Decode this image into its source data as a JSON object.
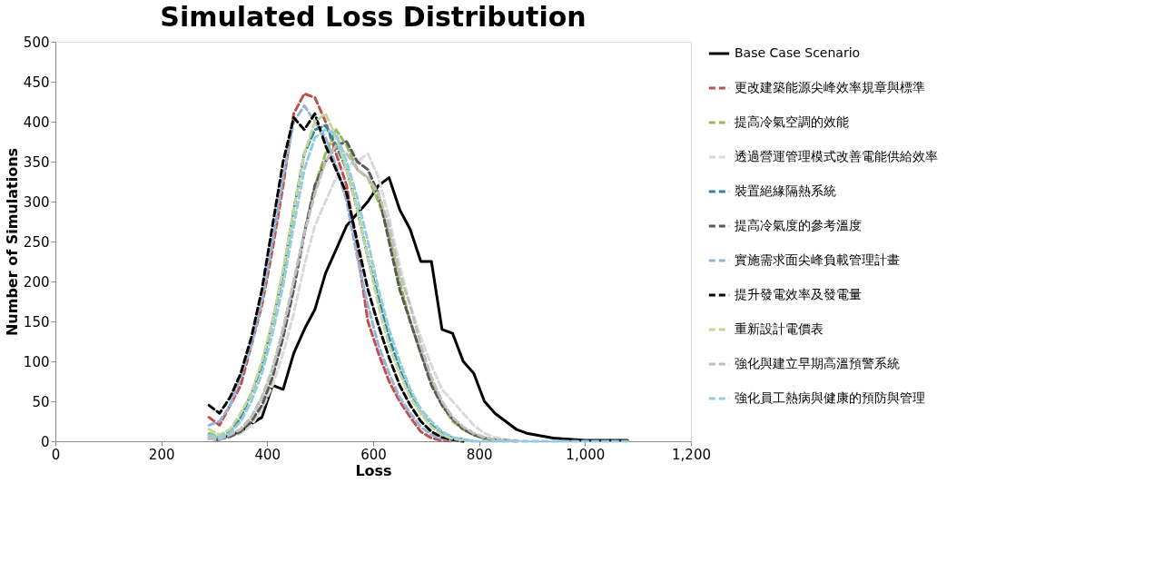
{
  "chart_data": {
    "type": "line",
    "title": "Simulated Loss Distribution",
    "xlabel": "Loss",
    "ylabel": "Number of Simulations",
    "xlim": [
      0,
      1200
    ],
    "xticks": [
      0,
      200,
      400,
      600,
      800,
      {
        "value": 1000,
        "label": "1,000"
      },
      {
        "value": 1200,
        "label": "1,200"
      }
    ],
    "ylim": [
      0,
      500
    ],
    "yticks": [
      0,
      50,
      100,
      150,
      200,
      250,
      300,
      350,
      400,
      450,
      500
    ],
    "grid": false,
    "legend": "right",
    "marker": "none",
    "x": [
      290,
      310,
      330,
      350,
      370,
      390,
      410,
      430,
      450,
      470,
      490,
      510,
      530,
      550,
      570,
      590,
      610,
      630,
      650,
      670,
      690,
      710,
      730,
      750,
      770,
      790,
      810,
      830,
      850,
      870,
      890,
      940,
      1000,
      1080
    ],
    "series": [
      {
        "name": "Base Case Scenario",
        "color": "#000000",
        "line_style": "solid",
        "values": [
          3,
          2,
          8,
          12,
          22,
          30,
          70,
          65,
          110,
          140,
          165,
          210,
          240,
          270,
          285,
          300,
          320,
          330,
          290,
          265,
          225,
          225,
          140,
          135,
          100,
          85,
          50,
          35,
          25,
          15,
          10,
          4,
          1,
          1
        ]
      },
      {
        "name": "更改建築能源尖峰效率規章與標準",
        "color": "#c0504d",
        "line_style": "dashed",
        "values": [
          30,
          20,
          45,
          70,
          120,
          170,
          240,
          320,
          410,
          435,
          430,
          400,
          360,
          320,
          240,
          150,
          110,
          75,
          50,
          30,
          12,
          4,
          1,
          0,
          null,
          null,
          null,
          null,
          null,
          null,
          null,
          null,
          null,
          null
        ]
      },
      {
        "name": "提高冷氣空調的效能",
        "color": "#9bbb59",
        "line_style": "dashed",
        "values": [
          10,
          5,
          8,
          15,
          30,
          55,
          90,
          140,
          200,
          260,
          320,
          360,
          390,
          370,
          340,
          330,
          300,
          260,
          200,
          150,
          110,
          75,
          45,
          25,
          15,
          8,
          3,
          1,
          0,
          null,
          null,
          null,
          null,
          null
        ]
      },
      {
        "name": "透過營運管理模式改善電能供給效率",
        "color": "#d9d9d9",
        "line_style": "dashed",
        "values": [
          3,
          2,
          5,
          10,
          20,
          40,
          70,
          110,
          160,
          220,
          270,
          300,
          330,
          345,
          350,
          360,
          330,
          280,
          220,
          170,
          130,
          95,
          65,
          50,
          35,
          20,
          10,
          5,
          2,
          1,
          0,
          null,
          null,
          null
        ]
      },
      {
        "name": "裝置絕緣隔熱系統",
        "color": "#31859c",
        "line_style": "dashed",
        "values": [
          8,
          5,
          12,
          30,
          60,
          95,
          150,
          210,
          290,
          360,
          390,
          395,
          370,
          340,
          290,
          230,
          180,
          130,
          90,
          60,
          35,
          20,
          10,
          4,
          2,
          0,
          null,
          null,
          null,
          null,
          null,
          null,
          null,
          null
        ]
      },
      {
        "name": "提高冷氣度的參考溫度",
        "color": "#595959",
        "line_style": "dashed",
        "values": [
          5,
          3,
          6,
          12,
          25,
          45,
          80,
          130,
          190,
          260,
          320,
          350,
          370,
          375,
          350,
          340,
          310,
          250,
          190,
          150,
          110,
          70,
          45,
          28,
          15,
          8,
          4,
          2,
          1,
          0,
          null,
          null,
          null,
          null
        ]
      },
      {
        "name": "實施需求面尖峰負載管理計畫",
        "color": "#95b3d7",
        "line_style": "dashed",
        "values": [
          20,
          25,
          45,
          80,
          120,
          175,
          250,
          330,
          400,
          420,
          400,
          380,
          345,
          300,
          230,
          170,
          120,
          85,
          55,
          35,
          18,
          8,
          3,
          1,
          0,
          null,
          null,
          null,
          null,
          null,
          null,
          null,
          null,
          null
        ]
      },
      {
        "name": "提升發電效率及發電量",
        "color": "#000000",
        "line_style": "dashed",
        "values": [
          45,
          35,
          55,
          85,
          130,
          190,
          270,
          350,
          405,
          390,
          410,
          370,
          340,
          310,
          250,
          190,
          145,
          105,
          70,
          45,
          25,
          12,
          5,
          2,
          0,
          null,
          null,
          null,
          null,
          null,
          null,
          null,
          null,
          null
        ]
      },
      {
        "name": "重新設計電價表",
        "color": "#c3d69b",
        "line_style": "dashed",
        "values": [
          15,
          8,
          15,
          35,
          60,
          100,
          150,
          215,
          290,
          360,
          400,
          410,
          380,
          340,
          290,
          230,
          170,
          120,
          85,
          55,
          35,
          18,
          8,
          3,
          1,
          0,
          null,
          null,
          null,
          null,
          null,
          null,
          null,
          null
        ]
      },
      {
        "name": "強化與建立早期高溫預警系統",
        "color": "#bfbfbf",
        "line_style": "dashed",
        "values": [
          5,
          3,
          8,
          15,
          30,
          55,
          90,
          140,
          200,
          260,
          310,
          350,
          370,
          360,
          340,
          330,
          310,
          270,
          210,
          170,
          120,
          80,
          50,
          30,
          18,
          10,
          5,
          2,
          1,
          0,
          null,
          null,
          null,
          null
        ]
      },
      {
        "name": "強化員工熱病與健康的預防與管理",
        "color": "#93cddd",
        "line_style": "dashed",
        "values": [
          8,
          5,
          10,
          25,
          50,
          85,
          135,
          195,
          270,
          340,
          380,
          390,
          385,
          350,
          305,
          250,
          190,
          140,
          100,
          65,
          40,
          25,
          12,
          5,
          2,
          0,
          0,
          0,
          0,
          0,
          0,
          0,
          0,
          0
        ]
      }
    ]
  }
}
